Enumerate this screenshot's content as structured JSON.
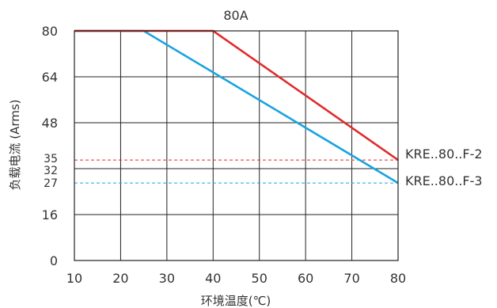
{
  "chart_data": {
    "type": "line",
    "title": "80A",
    "xlabel": "环境温度(℃)",
    "ylabel": "负载电流 (Arms)",
    "xlim": [
      10,
      80
    ],
    "ylim": [
      0,
      80
    ],
    "x_ticks": [
      "10",
      "20",
      "30",
      "40",
      "50",
      "60",
      "70",
      "80"
    ],
    "y_ticks": [
      {
        "value": 0,
        "label": "0"
      },
      {
        "value": 16,
        "label": "16"
      },
      {
        "value": 27,
        "label": "27"
      },
      {
        "value": 32,
        "label": "32"
      },
      {
        "value": 35,
        "label": "35"
      },
      {
        "value": 48,
        "label": "48"
      },
      {
        "value": 64,
        "label": "64"
      },
      {
        "value": 80,
        "label": "80"
      }
    ],
    "grid": true,
    "series": [
      {
        "name": "KRE..80..F-2",
        "color": "#e02b2b",
        "x": [
          10,
          40,
          80
        ],
        "y": [
          80,
          80,
          35
        ]
      },
      {
        "name": "KRE..80..F-3",
        "color": "#1aa3e0",
        "x": [
          10,
          25,
          80
        ],
        "y": [
          80,
          80,
          27
        ]
      }
    ],
    "reference_lines": [
      {
        "y": 35,
        "color": "#e02b2b",
        "style": "dashed"
      },
      {
        "y": 27,
        "color": "#1aa3e0",
        "style": "dashed"
      }
    ],
    "legend_placement": "right, at line ends"
  }
}
